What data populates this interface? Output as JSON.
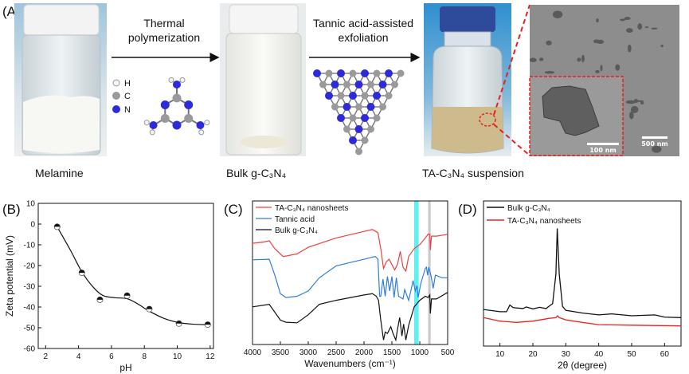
{
  "panel_a": {
    "label": "(A)",
    "step1": [
      "Thermal",
      "polymerization"
    ],
    "step2": [
      "Tannic acid-assisted",
      "exfoliation"
    ],
    "legend": [
      "H",
      "C",
      "N"
    ],
    "captions": [
      "Melamine",
      "Bulk g-C₃N₄",
      "TA-C₃N₄ suspension"
    ],
    "scale_inset": "100 nm",
    "scale_main": "500 nm",
    "colors": {
      "highlight": "#e8201e",
      "nitrogen": "#2b2bd9",
      "carbon": "#9a9a9a",
      "hydrogen": "#f4f4f4",
      "cap_blue": "#2e4a9a",
      "suspension": "#cdbb8e"
    }
  },
  "chart_data": [
    {
      "panel": "(B)",
      "type": "scatter",
      "xlabel": "pH",
      "ylabel": "Zeta potential (mV)",
      "xlim": [
        1.55,
        12.2
      ],
      "ylim": [
        -60,
        10
      ],
      "xticks": [
        2,
        4,
        6,
        8,
        10,
        12
      ],
      "yticks": [
        10,
        0,
        -10,
        -20,
        -30,
        -40,
        -50,
        -60
      ],
      "x": [
        2.7,
        4.2,
        5.3,
        6.95,
        8.3,
        10.1,
        11.85
      ],
      "y": [
        -1.3,
        -23.5,
        -36.5,
        -34.5,
        -41,
        -48,
        -48.5
      ],
      "fit": {
        "x": [
          2.7,
          3.5,
          4.2,
          4.9,
          5.5,
          6.2,
          6.95,
          7.6,
          8.3,
          9.2,
          10.1,
          11,
          11.85
        ],
        "y": [
          -1.3,
          -12.5,
          -23,
          -30.5,
          -34.5,
          -35.5,
          -36,
          -38.5,
          -42,
          -45.5,
          -47.5,
          -48.3,
          -48.5
        ]
      }
    },
    {
      "panel": "(C)",
      "type": "line",
      "xlabel": "Wavenumbers (cm⁻¹)",
      "ylabel": "",
      "xlim": [
        4000,
        500
      ],
      "ylim": [
        0,
        100
      ],
      "xticks": [
        4000,
        3500,
        3000,
        2500,
        2000,
        1500,
        1000,
        500
      ],
      "bands": [
        {
          "from": 1100,
          "to": 1020,
          "color": "#4ef0f0"
        },
        {
          "from": 850,
          "to": 805,
          "color": "#c4c4c4"
        }
      ],
      "series": [
        {
          "name": "TA-C₃N₄ nanosheets",
          "color": "#ef4040",
          "x": [
            4000,
            3800,
            3700,
            3600,
            3450,
            3200,
            3000,
            2500,
            2000,
            1850,
            1750,
            1700,
            1650,
            1600,
            1550,
            1500,
            1450,
            1400,
            1350,
            1300,
            1250,
            1200,
            1100,
            1000,
            900,
            850,
            820,
            810,
            790,
            700,
            500
          ],
          "y": [
            70.5,
            71.4,
            72.3,
            66.8,
            61.3,
            63.1,
            67.7,
            74.2,
            78.8,
            80.1,
            77.9,
            66.8,
            53,
            57.6,
            59.4,
            55.7,
            52,
            55.7,
            64.9,
            53.9,
            51.1,
            61.3,
            66.8,
            69.6,
            74.2,
            76.9,
            76.9,
            65.9,
            75.5,
            75.5,
            76.8
          ]
        },
        {
          "name": "Tannic acid",
          "color": "#2f7de0",
          "x": [
            4000,
            3700,
            3600,
            3500,
            3400,
            3200,
            3000,
            2800,
            2500,
            2000,
            1800,
            1750,
            1720,
            1700,
            1660,
            1620,
            1580,
            1540,
            1500,
            1460,
            1420,
            1380,
            1300,
            1270,
            1200,
            1150,
            1120,
            1080,
            1050,
            1030,
            980,
            900,
            880,
            860,
            840,
            800,
            760,
            720,
            600,
            500
          ],
          "y": [
            59,
            59.4,
            48.3,
            35.4,
            32.7,
            33.6,
            37.3,
            46.5,
            54.8,
            59.4,
            61.3,
            59.4,
            33.6,
            33.6,
            45.6,
            33.6,
            47.4,
            37.3,
            47.4,
            32.7,
            46.5,
            33.6,
            31.7,
            38.2,
            30.8,
            39.1,
            44.6,
            37.3,
            41,
            32.7,
            42.8,
            53,
            53.9,
            48.3,
            53.9,
            48.3,
            39.1,
            48.3,
            46.5,
            46.5
          ]
        },
        {
          "name": "Bulk g-C₃N₄",
          "color": "#111111",
          "x": [
            4000,
            3700,
            3600,
            3500,
            3400,
            3200,
            3000,
            2800,
            2500,
            2000,
            1850,
            1780,
            1740,
            1700,
            1650,
            1620,
            1580,
            1520,
            1480,
            1430,
            1400,
            1360,
            1320,
            1290,
            1250,
            1200,
            1100,
            1000,
            900,
            850,
            820,
            810,
            790,
            700,
            500
          ],
          "y": [
            26.2,
            28,
            22.5,
            17,
            15.5,
            15.1,
            20.7,
            28,
            30.8,
            34.5,
            35.4,
            33.6,
            30.8,
            17,
            3.1,
            8.7,
            7.7,
            12.4,
            7.7,
            3.1,
            10.5,
            18.8,
            5.9,
            14.2,
            3.1,
            13.3,
            26.2,
            30.8,
            33.6,
            32.7,
            34.5,
            21.6,
            31.7,
            31.7,
            36.3
          ]
        }
      ]
    },
    {
      "panel": "(D)",
      "type": "line",
      "xlabel": "2θ (degree)",
      "ylabel": "",
      "xlim": [
        5,
        65
      ],
      "ylim": [
        0,
        100
      ],
      "xticks": [
        10,
        20,
        30,
        40,
        50,
        60
      ],
      "series": [
        {
          "name": "Bulk g-C₃N₄",
          "color": "#111111",
          "x": [
            5,
            10,
            12,
            13,
            14,
            17,
            18,
            20,
            22,
            24,
            26,
            27,
            27.4,
            28,
            29,
            30,
            35,
            40,
            44,
            50,
            57,
            60,
            65
          ],
          "y": [
            25.2,
            23.7,
            23.7,
            28.3,
            26.5,
            25.9,
            27,
            25.6,
            26.7,
            25.9,
            29.3,
            49.6,
            81.1,
            49.6,
            27.4,
            24.6,
            22.8,
            21.5,
            22.2,
            20.9,
            21.5,
            20,
            19.6
          ]
        },
        {
          "name": "TA-C₃N₄ nanosheets",
          "color": "#ef2020",
          "x": [
            5,
            10,
            15,
            20,
            25,
            27,
            27.5,
            28,
            30,
            35,
            40,
            50,
            65
          ],
          "y": [
            19.6,
            17.2,
            16.3,
            17.2,
            19.1,
            19.6,
            20.9,
            19.6,
            18.1,
            16.3,
            14.8,
            14.4,
            13.9
          ]
        }
      ]
    }
  ]
}
